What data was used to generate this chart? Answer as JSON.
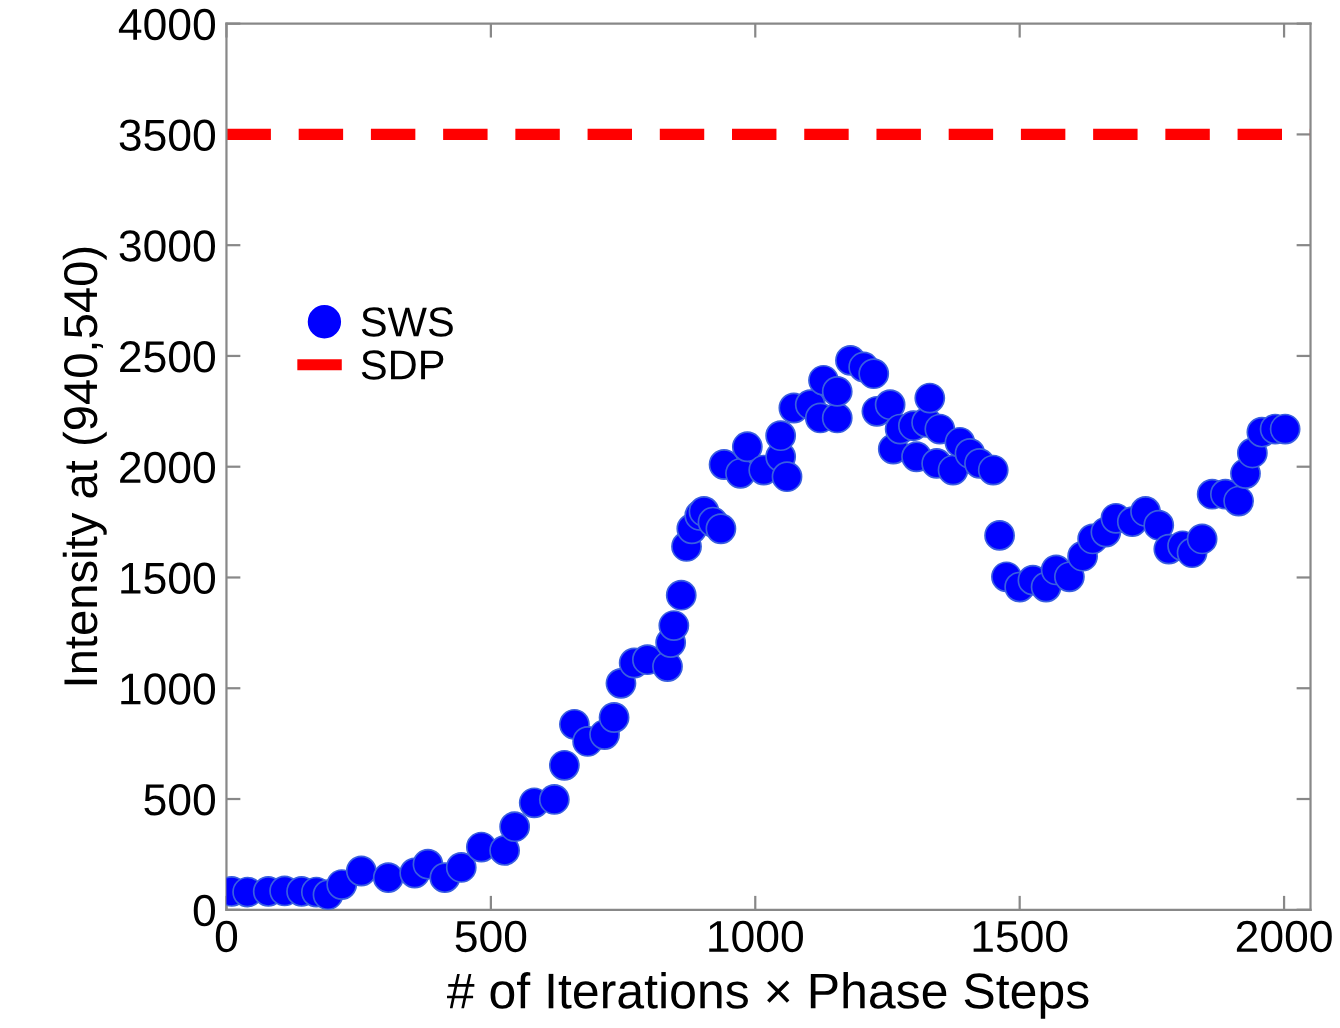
{
  "chart_data": {
    "type": "scatter",
    "xlabel": "# of Iterations × Phase Steps",
    "ylabel": "Intensity at (940,540)",
    "xlim": [
      0,
      2050
    ],
    "ylim": [
      0,
      4000
    ],
    "xticks": [
      0,
      500,
      1000,
      1500,
      2000
    ],
    "yticks": [
      0,
      500,
      1000,
      1500,
      2000,
      2500,
      3000,
      3500,
      4000
    ],
    "grid": false,
    "legend": "top left",
    "series": [
      {
        "name": "SWS",
        "marker": "circle",
        "color": "#0000ff",
        "x": [
          10,
          40,
          79,
          110,
          142,
          170,
          192,
          218,
          255,
          306,
          356,
          381,
          413,
          444,
          482,
          526,
          545,
          582,
          620,
          639,
          658,
          683,
          715,
          733,
          746,
          771,
          796,
          834,
          840,
          846,
          860,
          870,
          880,
          895,
          903,
          920,
          935,
          941,
          972,
          985,
          1016,
          1048,
          1048,
          1060,
          1073,
          1104,
          1123,
          1129,
          1155,
          1155,
          1180,
          1205,
          1224,
          1230,
          1255,
          1261,
          1274,
          1299,
          1305,
          1324,
          1330,
          1343,
          1349,
          1374,
          1387,
          1406,
          1424,
          1450,
          1462,
          1475,
          1500,
          1525,
          1550,
          1569,
          1594,
          1619,
          1638,
          1663,
          1682,
          1713,
          1738,
          1763,
          1782,
          1808,
          1826,
          1845,
          1864,
          1889,
          1914,
          1927,
          1940,
          1958,
          1983,
          2002
        ],
        "values": [
          83,
          80,
          83,
          85,
          83,
          80,
          68,
          114,
          175,
          145,
          166,
          206,
          145,
          191,
          283,
          268,
          375,
          483,
          498,
          652,
          837,
          760,
          791,
          868,
          1022,
          1114,
          1129,
          1098,
          1206,
          1283,
          1420,
          1640,
          1720,
          1780,
          1798,
          1750,
          1720,
          2010,
          1970,
          2090,
          1985,
          2045,
          2140,
          1955,
          2265,
          2280,
          2220,
          2390,
          2220,
          2340,
          2480,
          2450,
          2420,
          2250,
          2280,
          2080,
          2170,
          2185,
          2045,
          2200,
          2310,
          2015,
          2170,
          1985,
          2110,
          2060,
          2015,
          1985,
          1690,
          1503,
          1457,
          1488,
          1457,
          1534,
          1503,
          1596,
          1674,
          1705,
          1767,
          1752,
          1798,
          1736,
          1628,
          1643,
          1612,
          1674,
          1876,
          1876,
          1845,
          1969,
          2062,
          2156,
          2170,
          2170
        ]
      },
      {
        "name": "SDP",
        "type": "line",
        "color": "#ff0000",
        "line_style": "dashed",
        "marker": "none",
        "x": [
          0,
          2050
        ],
        "values": [
          3500,
          3500
        ]
      }
    ]
  }
}
